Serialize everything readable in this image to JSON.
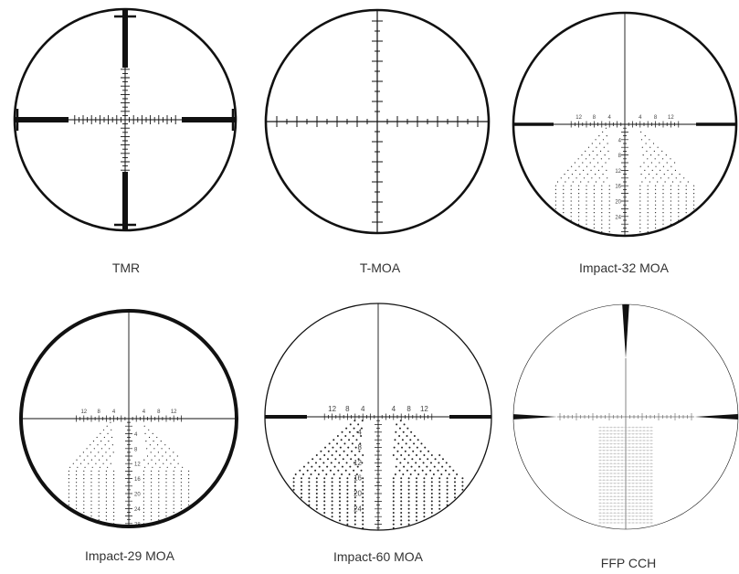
{
  "reticles": [
    {
      "name": "TMR",
      "type": "tmr",
      "ring": "medium"
    },
    {
      "name": "T-MOA",
      "type": "tmoa",
      "ring": "medium"
    },
    {
      "name": "Impact-32 MOA",
      "type": "impact32",
      "ring": "medium",
      "h_labels": [
        "12",
        "8",
        "4",
        "4",
        "8",
        "12"
      ],
      "v_labels": [
        "4",
        "8",
        "12",
        "16",
        "20",
        "24"
      ]
    },
    {
      "name": "Impact-29 MOA",
      "type": "impact29",
      "ring": "thick",
      "h_labels": [
        "12",
        "8",
        "4",
        "4",
        "8",
        "12"
      ],
      "v_labels": [
        "4",
        "8",
        "12",
        "16",
        "20",
        "24",
        "28"
      ]
    },
    {
      "name": "Impact-60 MOA",
      "type": "impact60",
      "ring": "thin",
      "h_labels": [
        "12",
        "8",
        "4",
        "4",
        "8",
        "12"
      ],
      "v_labels": [
        "4",
        "8",
        "12",
        "16",
        "20",
        "24"
      ]
    },
    {
      "name": "FFP CCH",
      "type": "ffpcch",
      "ring": "hairline"
    }
  ]
}
